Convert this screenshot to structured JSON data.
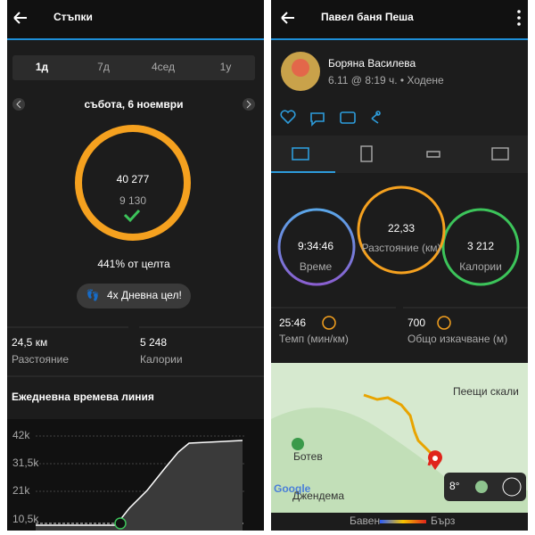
{
  "left": {
    "header": {
      "title": "Стъпки"
    },
    "tabs": [
      "1д",
      "7д",
      "4сед",
      "1у"
    ],
    "date": "събота, 6 ноември",
    "ring": {
      "steps": "40 277",
      "goal": "9 130"
    },
    "goal_percent": "441% от целта",
    "badge": "4x Дневна цел!",
    "stats": [
      {
        "value": "24,5 км",
        "label": "Разстояние"
      },
      {
        "value": "5 248",
        "label": "Калории"
      }
    ],
    "timeline": {
      "title": "Ежедневна времева линия",
      "ticks": [
        "42k",
        "31,5k",
        "21k",
        "10,5k"
      ]
    }
  },
  "right": {
    "header": {
      "title": "Павел баня Пеша"
    },
    "user": {
      "name": "Боряна Василева",
      "meta": "6.11 @ 8:19 ч. • Ходене"
    },
    "circles": [
      {
        "value": "9:34:46",
        "label": "Време"
      },
      {
        "value": "22,33",
        "label": "Разстояние (км)"
      },
      {
        "value": "3 212",
        "label": "Калории"
      }
    ],
    "stats": [
      {
        "value": "25:46",
        "label": "Темп (мин/км)"
      },
      {
        "value": "700",
        "label": "Общо изкачване (м)"
      }
    ],
    "map": {
      "labels": [
        "Пеещи скали",
        "Ботев",
        "Джендема"
      ],
      "brand": "Google",
      "temperature": "8°"
    },
    "speed_legend": {
      "slow": "Бавен",
      "fast": "Бърз"
    }
  }
}
